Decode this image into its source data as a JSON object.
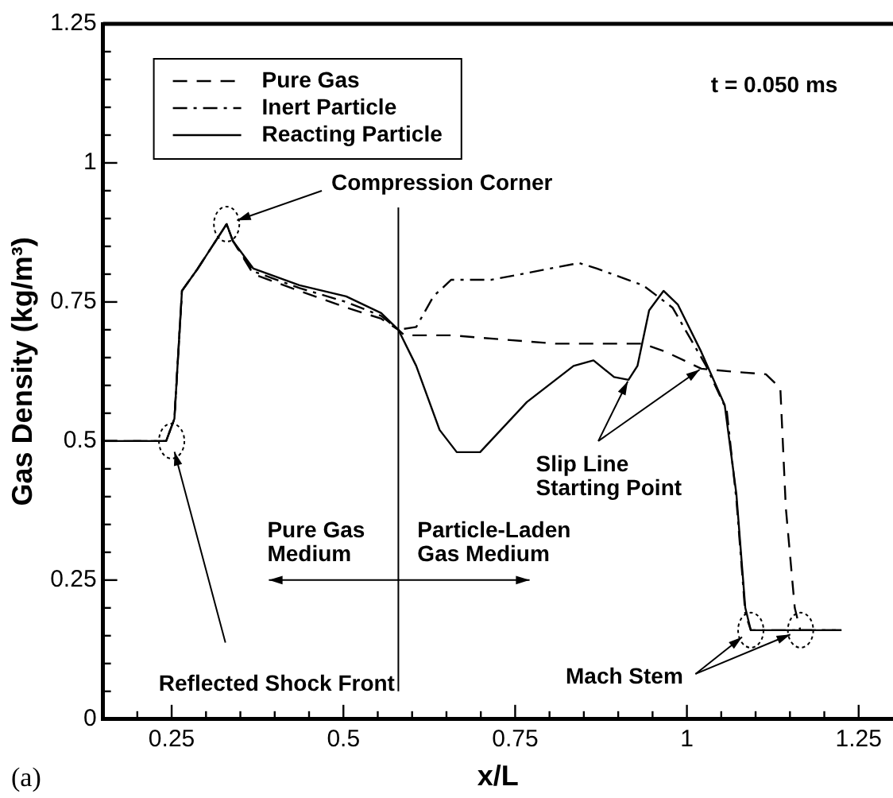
{
  "chart_data": {
    "type": "line",
    "xlabel": "x/L",
    "ylabel": "Gas Density (kg/m³)",
    "xlim": [
      0.15,
      1.3
    ],
    "ylim": [
      0,
      1.25
    ],
    "xticks": [
      {
        "value": 0.2,
        "label": null
      },
      0.25,
      {
        "value": 0.3,
        "label": null
      },
      {
        "value": 0.35,
        "label": null
      },
      {
        "value": 0.4,
        "label": null
      },
      {
        "value": 0.45,
        "label": null
      },
      0.5,
      {
        "value": 0.55,
        "label": null
      },
      {
        "value": 0.6,
        "label": null
      },
      {
        "value": 0.65,
        "label": null
      },
      {
        "value": 0.7,
        "label": null
      },
      0.75,
      {
        "value": 0.8,
        "label": null
      },
      {
        "value": 0.85,
        "label": null
      },
      {
        "value": 0.9,
        "label": null
      },
      {
        "value": 0.95,
        "label": null
      },
      1,
      {
        "value": 1.05,
        "label": null
      },
      {
        "value": 1.1,
        "label": null
      },
      {
        "value": 1.15,
        "label": null
      },
      {
        "value": 1.2,
        "label": null
      },
      1.25
    ],
    "yticks": [
      0,
      {
        "value": 0.05,
        "label": null
      },
      {
        "value": 0.1,
        "label": null
      },
      {
        "value": 0.15,
        "label": null
      },
      {
        "value": 0.2,
        "label": null
      },
      0.25,
      {
        "value": 0.3,
        "label": null
      },
      {
        "value": 0.35,
        "label": null
      },
      {
        "value": 0.4,
        "label": null
      },
      {
        "value": 0.45,
        "label": null
      },
      0.5,
      {
        "value": 0.55,
        "label": null
      },
      {
        "value": 0.6,
        "label": null
      },
      {
        "value": 0.65,
        "label": null
      },
      {
        "value": 0.7,
        "label": null
      },
      0.75,
      {
        "value": 0.8,
        "label": null
      },
      {
        "value": 0.85,
        "label": null
      },
      {
        "value": 0.9,
        "label": null
      },
      {
        "value": 0.95,
        "label": null
      },
      1,
      {
        "value": 1.05,
        "label": null
      },
      {
        "value": 1.1,
        "label": null
      },
      {
        "value": 1.15,
        "label": null
      },
      {
        "value": 1.2,
        "label": null
      },
      1.25
    ],
    "grid": false,
    "legend": "top left",
    "marker": "none",
    "series": [
      {
        "name": "Pure Gas",
        "color": "#000000",
        "line_style": "dashed",
        "x": [
          0.15,
          0.242,
          0.254,
          0.265,
          0.288,
          0.33,
          0.339,
          0.369,
          0.436,
          0.504,
          0.555,
          0.58,
          0.589,
          0.657,
          0.809,
          0.936,
          0.97,
          1.021,
          1.064,
          1.115,
          1.136,
          1.144,
          1.157,
          1.165,
          1.225
        ],
        "values": [
          0.5,
          0.5,
          0.54,
          0.77,
          0.81,
          0.89,
          0.86,
          0.8,
          0.77,
          0.74,
          0.72,
          0.7,
          0.69,
          0.69,
          0.675,
          0.675,
          0.66,
          0.63,
          0.625,
          0.62,
          0.595,
          0.38,
          0.2,
          0.16,
          0.16
        ]
      },
      {
        "name": "Inert Particle",
        "color": "#000000",
        "line_style": "dashdot",
        "x": [
          0.15,
          0.242,
          0.254,
          0.265,
          0.288,
          0.33,
          0.339,
          0.369,
          0.436,
          0.504,
          0.555,
          0.58,
          0.606,
          0.631,
          0.657,
          0.716,
          0.843,
          0.869,
          0.936,
          0.979,
          1.028,
          1.058,
          1.072,
          1.085,
          1.093,
          1.225
        ],
        "values": [
          0.5,
          0.5,
          0.54,
          0.77,
          0.81,
          0.89,
          0.86,
          0.805,
          0.775,
          0.75,
          0.725,
          0.7,
          0.705,
          0.76,
          0.79,
          0.79,
          0.82,
          0.81,
          0.78,
          0.74,
          0.635,
          0.555,
          0.395,
          0.19,
          0.16,
          0.16
        ]
      },
      {
        "name": "Reacting Particle",
        "color": "#000000",
        "line_style": "solid",
        "x": [
          0.15,
          0.242,
          0.254,
          0.265,
          0.288,
          0.33,
          0.339,
          0.369,
          0.436,
          0.504,
          0.555,
          0.58,
          0.606,
          0.64,
          0.665,
          0.699,
          0.767,
          0.835,
          0.864,
          0.894,
          0.915,
          0.928,
          0.945,
          0.966,
          0.987,
          1.021,
          1.055,
          1.072,
          1.085,
          1.093,
          1.225
        ],
        "values": [
          0.5,
          0.5,
          0.54,
          0.77,
          0.81,
          0.89,
          0.86,
          0.81,
          0.78,
          0.76,
          0.73,
          0.7,
          0.635,
          0.52,
          0.48,
          0.48,
          0.57,
          0.635,
          0.645,
          0.615,
          0.61,
          0.635,
          0.735,
          0.77,
          0.745,
          0.66,
          0.565,
          0.405,
          0.2,
          0.16,
          0.16
        ]
      }
    ],
    "ref_lines": [
      {
        "axis": "x",
        "value": 0.58
      }
    ],
    "annotations": [
      "t = 0.050 ms",
      {
        "text": "Compression Corner",
        "x": 0.33,
        "y": 0.89
      },
      {
        "text": "Reflected Shock Front",
        "x": 0.25,
        "y": 0.5
      },
      {
        "text": "Slip Line Starting Point",
        "x": 0.915,
        "y": 0.61
      },
      {
        "text": "Mach Stem",
        "x": 1.093,
        "y": 0.16
      },
      "Pure Gas Medium",
      "Particle-Laden Gas Medium",
      "(a)"
    ]
  }
}
